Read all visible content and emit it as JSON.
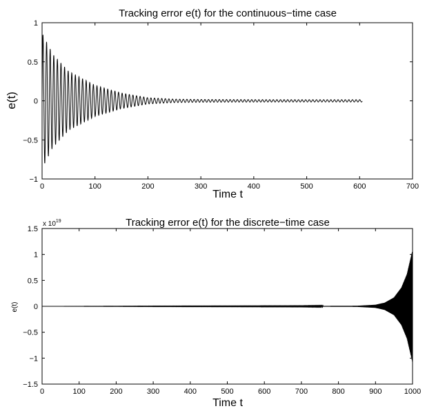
{
  "chart_data": [
    {
      "type": "line",
      "title": "Tracking error e(t) for the continuous−time case",
      "xlabel": "Time t",
      "ylabel": "e(t)",
      "xlim": [
        0,
        700
      ],
      "ylim": [
        -1,
        1
      ],
      "xticks": [
        "0",
        "100",
        "200",
        "300",
        "400",
        "500",
        "600",
        "700"
      ],
      "yticks": [
        "1",
        "0.5",
        "0",
        "−0.5",
        "−1"
      ],
      "grid": false,
      "series": [
        {
          "color": "#000000",
          "description": "damped oscillation",
          "t_range": [
            0,
            605
          ],
          "period": 6.8,
          "initial_amplitude": 0.87,
          "envelope": [
            [
              0,
              0.87
            ],
            [
              20,
              0.6
            ],
            [
              50,
              0.38
            ],
            [
              100,
              0.2
            ],
            [
              150,
              0.1
            ],
            [
              200,
              0.04
            ],
            [
              250,
              0.022
            ],
            [
              300,
              0.018
            ],
            [
              400,
              0.016
            ],
            [
              500,
              0.015
            ],
            [
              605,
              0.015
            ]
          ]
        }
      ]
    },
    {
      "type": "line",
      "title": "Tracking error e(t) for the discrete−time case",
      "xlabel": "Time t",
      "ylabel": "e(t)",
      "y_scale_label": "x 10",
      "y_scale_exponent": "19",
      "xlim": [
        0,
        1000
      ],
      "ylim": [
        -1.5,
        1.5
      ],
      "xticks": [
        "0",
        "100",
        "200",
        "300",
        "400",
        "500",
        "600",
        "700",
        "800",
        "900",
        "1000"
      ],
      "yticks": [
        "1.5",
        "1",
        "0.5",
        "0",
        "−0.5",
        "−1",
        "−1.5"
      ],
      "grid": false,
      "series": [
        {
          "color": "#000000",
          "description": "growing oscillation",
          "t_range": [
            0,
            1000
          ],
          "envelope": [
            [
              0,
              0
            ],
            [
              300,
              0.003
            ],
            [
              500,
              0.004
            ],
            [
              700,
              0.005
            ],
            [
              850,
              0.01
            ],
            [
              900,
              0.03
            ],
            [
              925,
              0.07
            ],
            [
              950,
              0.17
            ],
            [
              970,
              0.36
            ],
            [
              985,
              0.62
            ],
            [
              1000,
              1.08
            ]
          ]
        }
      ]
    }
  ]
}
